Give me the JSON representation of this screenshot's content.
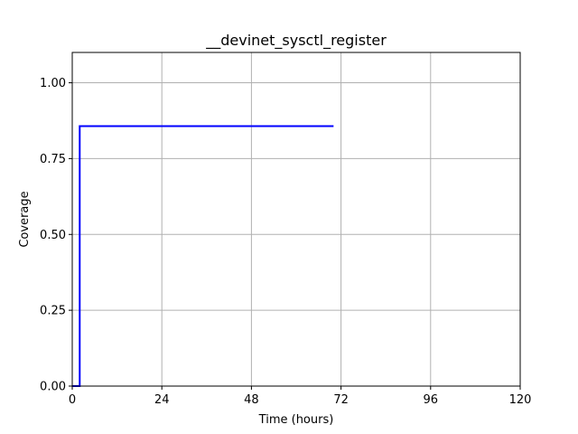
{
  "chart_data": {
    "type": "line",
    "title": "__devinet_sysctl_register",
    "xlabel": "Time (hours)",
    "ylabel": "Coverage",
    "xlim": [
      0,
      120
    ],
    "ylim": [
      0,
      1.1
    ],
    "xticks": [
      0,
      24,
      48,
      72,
      96,
      120
    ],
    "xtick_labels": [
      "0",
      "24",
      "48",
      "72",
      "96",
      "120"
    ],
    "yticks": [
      0.0,
      0.25,
      0.5,
      0.75,
      1.0
    ],
    "ytick_labels": [
      "0.00",
      "0.25",
      "0.50",
      "0.75",
      "1.00"
    ],
    "grid": true,
    "series": [
      {
        "color": "#0000ff",
        "x": [
          0,
          2,
          2,
          70
        ],
        "y": [
          0,
          0,
          0.857,
          0.857
        ]
      }
    ]
  }
}
